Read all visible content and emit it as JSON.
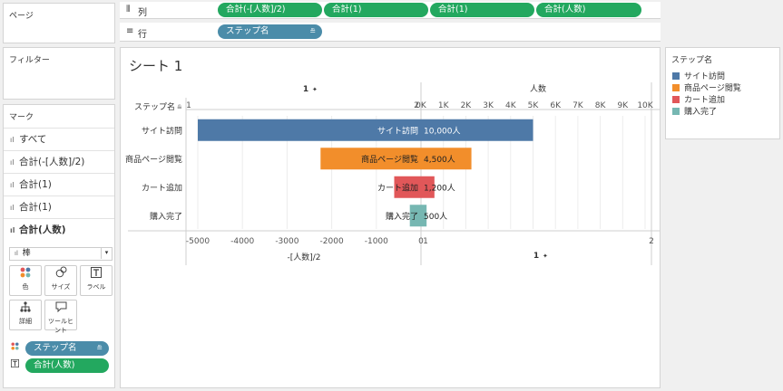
{
  "shelves": {
    "pages_title": "ページ",
    "columns_icon": "columns-icon",
    "columns_title": "列",
    "column_pills": [
      "合計(-[人数]/2)",
      "合計(1)",
      "合計(1)",
      "合計(人数)"
    ],
    "rows_icon": "rows-icon",
    "rows_title": "行",
    "row_pill": "ステップ名",
    "filters_title": "フィルター"
  },
  "marks": {
    "title": "マーク",
    "items": [
      "すべて",
      "合計(-[人数]/2)",
      "合計(1)",
      "合計(1)",
      "合計(人数)"
    ],
    "mark_type": "棒",
    "buttons": [
      {
        "label": "色",
        "icon": "color-icon"
      },
      {
        "label": "サイズ",
        "icon": "size-icon"
      },
      {
        "label": "ラベル",
        "icon": "label-icon"
      },
      {
        "label": "詳細",
        "icon": "detail-icon"
      },
      {
        "label": "ツールヒント",
        "icon": "tooltip-icon"
      }
    ],
    "fields": [
      {
        "label": "ステップ名",
        "icon": "color-dots-icon"
      },
      {
        "label": "合計(人数)",
        "icon": "text-icon"
      }
    ]
  },
  "sheet": {
    "title": "シート 1",
    "row_header": "ステップ名",
    "pane1_header": "1",
    "pane1_axis_title": "-[人数]/2",
    "pane2_footer": "1",
    "pane3_header": "人数"
  },
  "legend": {
    "title": "ステップ名",
    "items": [
      {
        "label": "サイト訪問",
        "color": "#4e79a7"
      },
      {
        "label": "商品ページ閲覧",
        "color": "#f28e2b"
      },
      {
        "label": "カート追加",
        "color": "#e15759"
      },
      {
        "label": "購入完了",
        "color": "#76b7b2"
      }
    ]
  },
  "chart_data": {
    "type": "bar",
    "categories": [
      "サイト訪問",
      "商品ページ閲覧",
      "カート追加",
      "購入完了"
    ],
    "values": [
      10000,
      4500,
      1200,
      500
    ],
    "labels": [
      "10,000人",
      "4,500人",
      "1,200人",
      "500人"
    ],
    "colors": [
      "#4e79a7",
      "#f28e2b",
      "#e15759",
      "#76b7b2"
    ],
    "panes": [
      {
        "measure": "-[人数]/2",
        "xlim": [
          -5000,
          0
        ],
        "ticks": [
          "-5000",
          "-4000",
          "-3000",
          "-2000",
          "-1000",
          "0"
        ],
        "top_ticks": [
          "1",
          "2"
        ]
      },
      {
        "measure": "1",
        "xlim": [
          1,
          2
        ],
        "ticks": [
          "1",
          "2"
        ]
      },
      {
        "measure": "人数",
        "xlim": [
          0,
          10000
        ],
        "ticks": [
          "0K",
          "1K",
          "2K",
          "3K",
          "4K",
          "5K",
          "6K",
          "7K",
          "8K",
          "9K",
          "10K"
        ]
      }
    ]
  }
}
